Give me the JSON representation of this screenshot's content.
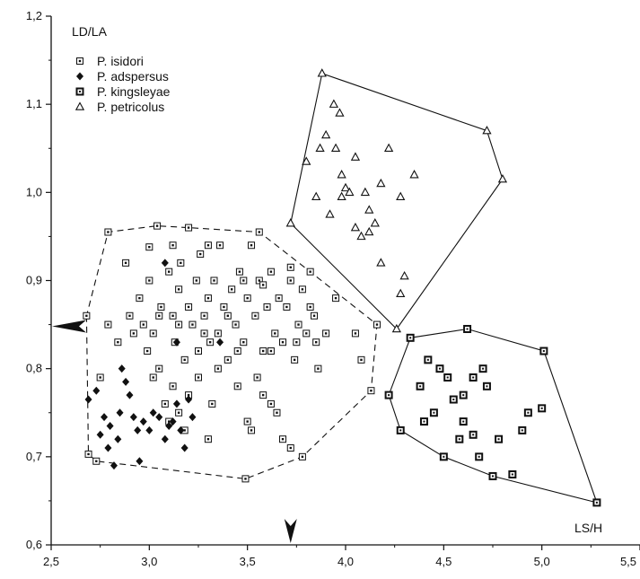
{
  "chart_data": {
    "type": "scatter",
    "xlabel": "LS/H",
    "ylabel": "LD/LA",
    "xlim": [
      2.5,
      5.5
    ],
    "ylim": [
      0.6,
      1.2
    ],
    "xticks": [
      "2,5",
      "3,0",
      "3,5",
      "4,0",
      "4,5",
      "5,0",
      "5,5"
    ],
    "yticks": [
      "0,6",
      "0,7",
      "0,8",
      "0,9",
      "1,0",
      "1,1",
      "1,2"
    ],
    "grid": false,
    "legend_position": "top-left",
    "series": [
      {
        "name": "P. isidori",
        "marker": "dotted-square",
        "hull": "dashed",
        "points": [
          [
            2.79,
            0.955
          ],
          [
            3.04,
            0.962
          ],
          [
            3.56,
            0.955
          ],
          [
            2.68,
            0.86
          ],
          [
            2.75,
            0.79
          ],
          [
            2.69,
            0.703
          ],
          [
            2.73,
            0.695
          ],
          [
            3.49,
            0.675
          ],
          [
            3.78,
            0.7
          ],
          [
            4.13,
            0.775
          ],
          [
            4.16,
            0.85
          ],
          [
            2.88,
            0.92
          ],
          [
            2.79,
            0.85
          ],
          [
            2.84,
            0.83
          ],
          [
            2.9,
            0.86
          ],
          [
            2.95,
            0.88
          ],
          [
            2.97,
            0.85
          ],
          [
            2.99,
            0.82
          ],
          [
            3.0,
            0.9
          ],
          [
            3.02,
            0.84
          ],
          [
            3.05,
            0.8
          ],
          [
            3.06,
            0.87
          ],
          [
            3.0,
            0.938
          ],
          [
            3.1,
            0.91
          ],
          [
            3.12,
            0.86
          ],
          [
            3.13,
            0.83
          ],
          [
            3.15,
            0.89
          ],
          [
            3.16,
            0.92
          ],
          [
            3.18,
            0.81
          ],
          [
            3.2,
            0.87
          ],
          [
            3.22,
            0.85
          ],
          [
            3.24,
            0.9
          ],
          [
            3.25,
            0.82
          ],
          [
            3.26,
            0.93
          ],
          [
            3.28,
            0.86
          ],
          [
            3.3,
            0.88
          ],
          [
            3.31,
            0.83
          ],
          [
            3.33,
            0.9
          ],
          [
            3.35,
            0.84
          ],
          [
            3.36,
            0.94
          ],
          [
            3.38,
            0.87
          ],
          [
            3.4,
            0.81
          ],
          [
            3.42,
            0.89
          ],
          [
            3.44,
            0.85
          ],
          [
            3.46,
            0.91
          ],
          [
            3.48,
            0.83
          ],
          [
            3.5,
            0.88
          ],
          [
            3.52,
            0.94
          ],
          [
            3.54,
            0.86
          ],
          [
            3.56,
            0.9
          ],
          [
            3.58,
            0.82
          ],
          [
            3.6,
            0.87
          ],
          [
            3.62,
            0.91
          ],
          [
            3.64,
            0.84
          ],
          [
            3.66,
            0.88
          ],
          [
            3.68,
            0.83
          ],
          [
            3.7,
            0.87
          ],
          [
            3.72,
            0.9
          ],
          [
            3.74,
            0.81
          ],
          [
            3.76,
            0.85
          ],
          [
            3.78,
            0.89
          ],
          [
            3.8,
            0.84
          ],
          [
            3.82,
            0.91
          ],
          [
            3.84,
            0.86
          ],
          [
            3.86,
            0.8
          ],
          [
            3.9,
            0.84
          ],
          [
            3.95,
            0.88
          ],
          [
            4.05,
            0.84
          ],
          [
            4.08,
            0.81
          ],
          [
            3.02,
            0.79
          ],
          [
            3.08,
            0.76
          ],
          [
            3.1,
            0.74
          ],
          [
            3.12,
            0.78
          ],
          [
            3.15,
            0.75
          ],
          [
            3.18,
            0.73
          ],
          [
            3.2,
            0.77
          ],
          [
            3.25,
            0.79
          ],
          [
            3.3,
            0.72
          ],
          [
            3.32,
            0.76
          ],
          [
            3.45,
            0.78
          ],
          [
            3.5,
            0.74
          ],
          [
            3.52,
            0.73
          ],
          [
            3.55,
            0.79
          ],
          [
            3.58,
            0.77
          ],
          [
            3.62,
            0.76
          ],
          [
            3.65,
            0.75
          ],
          [
            3.72,
            0.71
          ],
          [
            3.68,
            0.72
          ],
          [
            3.12,
            0.94
          ],
          [
            3.2,
            0.96
          ],
          [
            3.3,
            0.94
          ],
          [
            3.48,
            0.9
          ],
          [
            3.58,
            0.895
          ],
          [
            3.72,
            0.915
          ],
          [
            3.82,
            0.87
          ],
          [
            3.15,
            0.85
          ],
          [
            3.28,
            0.84
          ],
          [
            3.4,
            0.86
          ],
          [
            3.05,
            0.86
          ],
          [
            2.92,
            0.84
          ],
          [
            3.35,
            0.8
          ],
          [
            3.45,
            0.82
          ],
          [
            3.62,
            0.82
          ],
          [
            3.75,
            0.83
          ],
          [
            3.85,
            0.83
          ]
        ]
      },
      {
        "name": "P. adspersus",
        "marker": "filled-diamond",
        "hull": "none",
        "points": [
          [
            2.69,
            0.765
          ],
          [
            2.73,
            0.775
          ],
          [
            2.75,
            0.725
          ],
          [
            2.77,
            0.745
          ],
          [
            2.79,
            0.71
          ],
          [
            2.8,
            0.735
          ],
          [
            2.82,
            0.69
          ],
          [
            2.84,
            0.72
          ],
          [
            2.86,
            0.8
          ],
          [
            2.88,
            0.785
          ],
          [
            2.9,
            0.77
          ],
          [
            2.92,
            0.745
          ],
          [
            2.94,
            0.73
          ],
          [
            2.95,
            0.695
          ],
          [
            2.97,
            0.74
          ],
          [
            3.0,
            0.73
          ],
          [
            3.02,
            0.75
          ],
          [
            3.05,
            0.745
          ],
          [
            3.08,
            0.72
          ],
          [
            3.1,
            0.735
          ],
          [
            3.12,
            0.74
          ],
          [
            3.14,
            0.76
          ],
          [
            3.16,
            0.73
          ],
          [
            3.18,
            0.71
          ],
          [
            3.2,
            0.765
          ],
          [
            3.22,
            0.745
          ],
          [
            3.08,
            0.92
          ],
          [
            3.14,
            0.83
          ],
          [
            3.36,
            0.83
          ],
          [
            2.85,
            0.75
          ]
        ]
      },
      {
        "name": "P. kingsleyae",
        "marker": "bold-square",
        "hull": "solid",
        "points": [
          [
            4.33,
            0.835
          ],
          [
            4.62,
            0.845
          ],
          [
            5.01,
            0.82
          ],
          [
            4.22,
            0.77
          ],
          [
            4.28,
            0.73
          ],
          [
            4.5,
            0.7
          ],
          [
            4.75,
            0.678
          ],
          [
            5.28,
            0.648
          ],
          [
            4.42,
            0.81
          ],
          [
            4.48,
            0.8
          ],
          [
            4.52,
            0.79
          ],
          [
            4.38,
            0.78
          ],
          [
            4.6,
            0.77
          ],
          [
            4.65,
            0.79
          ],
          [
            4.7,
            0.8
          ],
          [
            4.72,
            0.78
          ],
          [
            4.55,
            0.765
          ],
          [
            4.45,
            0.75
          ],
          [
            4.4,
            0.74
          ],
          [
            4.6,
            0.74
          ],
          [
            4.65,
            0.725
          ],
          [
            4.78,
            0.72
          ],
          [
            4.9,
            0.73
          ],
          [
            4.93,
            0.75
          ],
          [
            5.0,
            0.755
          ],
          [
            4.68,
            0.7
          ],
          [
            4.85,
            0.68
          ],
          [
            4.58,
            0.72
          ]
        ]
      },
      {
        "name": "P. petricolus",
        "marker": "open-triangle",
        "hull": "solid",
        "points": [
          [
            3.88,
            1.135
          ],
          [
            4.72,
            1.07
          ],
          [
            4.8,
            1.015
          ],
          [
            4.26,
            0.845
          ],
          [
            3.72,
            0.965
          ],
          [
            3.8,
            1.035
          ],
          [
            3.94,
            1.1
          ],
          [
            3.97,
            1.09
          ],
          [
            3.9,
            1.065
          ],
          [
            3.95,
            1.05
          ],
          [
            3.87,
            1.05
          ],
          [
            3.98,
            1.02
          ],
          [
            4.05,
            1.04
          ],
          [
            4.0,
            1.005
          ],
          [
            4.02,
            1.0
          ],
          [
            3.98,
            0.995
          ],
          [
            3.92,
            0.975
          ],
          [
            3.85,
            0.995
          ],
          [
            4.1,
            1.0
          ],
          [
            4.12,
            0.98
          ],
          [
            4.18,
            1.01
          ],
          [
            4.22,
            1.05
          ],
          [
            4.28,
            0.995
          ],
          [
            4.35,
            1.02
          ],
          [
            4.05,
            0.96
          ],
          [
            4.08,
            0.95
          ],
          [
            4.12,
            0.955
          ],
          [
            4.15,
            0.965
          ],
          [
            4.18,
            0.92
          ],
          [
            4.3,
            0.905
          ],
          [
            4.28,
            0.885
          ]
        ]
      }
    ],
    "arrows": [
      {
        "axis": "y",
        "value": 0.848
      },
      {
        "axis": "x",
        "value": 3.72
      }
    ]
  },
  "colors": {
    "ink": "#111111",
    "background": "#ffffff"
  }
}
